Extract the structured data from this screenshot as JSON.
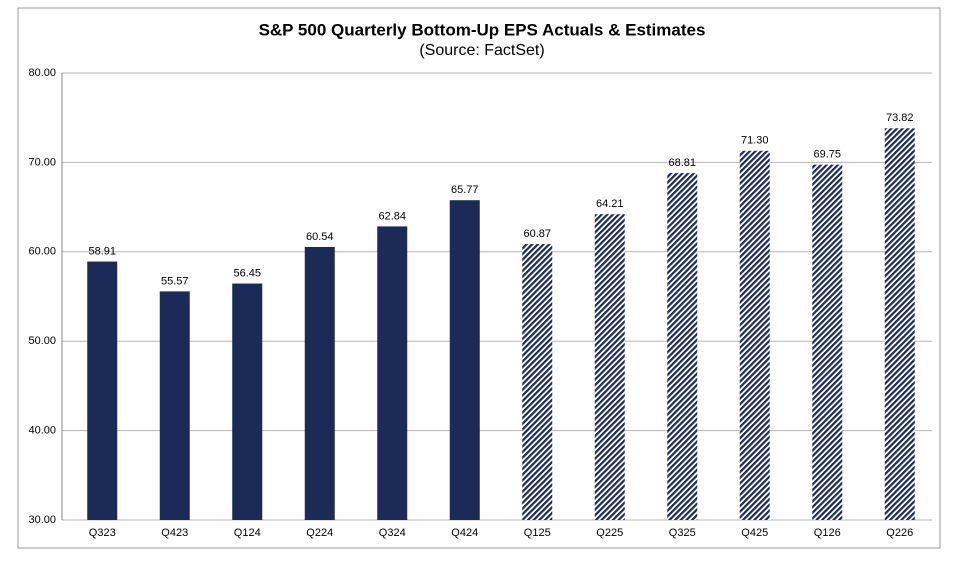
{
  "chart_data": {
    "type": "bar",
    "title": "S&P 500 Quarterly Bottom-Up EPS Actuals & Estimates",
    "subtitle": "(Source: FactSet)",
    "categories": [
      "Q323",
      "Q423",
      "Q124",
      "Q224",
      "Q324",
      "Q424",
      "Q125",
      "Q225",
      "Q325",
      "Q425",
      "Q126",
      "Q226"
    ],
    "series": [
      {
        "color": "#1b2a56",
        "pattern": "solid",
        "values": [
          58.91,
          55.57,
          56.45,
          60.54,
          62.84,
          65.77,
          null,
          null,
          null,
          null,
          null,
          null
        ],
        "value_labels": [
          "58.91",
          "55.57",
          "56.45",
          "60.54",
          "62.84",
          "65.77",
          null,
          null,
          null,
          null,
          null,
          null
        ]
      },
      {
        "color": "#1b2a56",
        "pattern": "hatched",
        "values": [
          null,
          null,
          null,
          null,
          null,
          null,
          60.87,
          64.21,
          68.81,
          71.3,
          69.75,
          73.82
        ],
        "value_labels": [
          null,
          null,
          null,
          null,
          null,
          null,
          "60.87",
          "64.21",
          "68.81",
          "71.30",
          "69.75",
          "73.82"
        ]
      }
    ],
    "ylim": [
      30,
      80
    ],
    "yticks": [
      {
        "value": 30,
        "label": "30.00"
      },
      {
        "value": 40,
        "label": "40.00"
      },
      {
        "value": 50,
        "label": "50.00"
      },
      {
        "value": 60,
        "label": "60.00"
      },
      {
        "value": 70,
        "label": "70.00"
      },
      {
        "value": 80,
        "label": "80.00"
      }
    ],
    "grid": true
  }
}
